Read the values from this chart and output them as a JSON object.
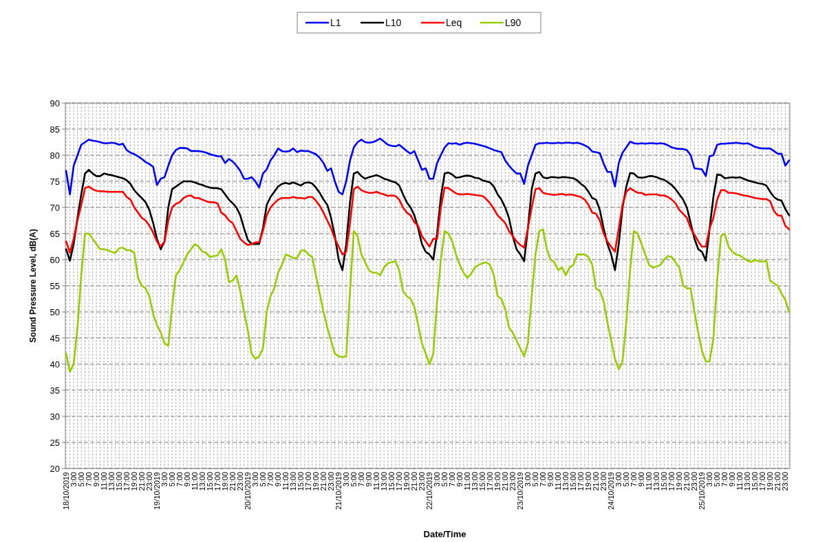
{
  "chart_data": {
    "type": "line",
    "xlabel": "Date/Time",
    "ylabel": "Sound Pressure Level, dB(A)",
    "categories": [
      "18/10/2019",
      null,
      "3:00",
      null,
      "5:00",
      null,
      "7:00",
      null,
      "9:00",
      null,
      "11:00",
      null,
      "13:00",
      null,
      "15:00",
      null,
      "17:00",
      null,
      "19:00",
      null,
      "21:00",
      null,
      "23:00",
      null,
      "19/10/2019",
      null,
      "3:00",
      null,
      "5:00",
      null,
      "7:00",
      null,
      "9:00",
      null,
      "11:00",
      null,
      "13:00",
      null,
      "15:00",
      null,
      "17:00",
      null,
      "19:00",
      null,
      "21:00",
      null,
      "23:00",
      null,
      "20/10/2019",
      null,
      "3:00",
      null,
      "5:00",
      null,
      "7:00",
      null,
      "9:00",
      null,
      "11:00",
      null,
      "13:00",
      null,
      "15:00",
      null,
      "17:00",
      null,
      "19:00",
      null,
      "21:00",
      null,
      "23:00",
      null,
      "21/10/2019",
      null,
      "3:00",
      null,
      "5:00",
      null,
      "7:00",
      null,
      "9:00",
      null,
      "11:00",
      null,
      "13:00",
      null,
      "15:00",
      null,
      "17:00",
      null,
      "19:00",
      null,
      "21:00",
      null,
      "23:00",
      null,
      "22/10/2019",
      null,
      "3:00",
      null,
      "5:00",
      null,
      "7:00",
      null,
      "9:00",
      null,
      "11:00",
      null,
      "13:00",
      null,
      "15:00",
      null,
      "17:00",
      null,
      "19:00",
      null,
      "21:00",
      null,
      "23:00",
      null,
      "23/10/2019",
      null,
      "3:00",
      null,
      "5:00",
      null,
      "7:00",
      null,
      "9:00",
      null,
      "11:00",
      null,
      "13:00",
      null,
      "15:00",
      null,
      "17:00",
      null,
      "19:00",
      null,
      "21:00",
      null,
      "23:00",
      null,
      "24/10/2019",
      null,
      "3:00",
      null,
      "5:00",
      null,
      "7:00",
      null,
      "9:00",
      null,
      "11:00",
      null,
      "13:00",
      null,
      "15:00",
      null,
      "17:00",
      null,
      "19:00",
      null,
      "21:00",
      null,
      "23:00",
      null,
      "25/10/2019",
      null,
      "3:00",
      null,
      "5:00",
      null,
      "7:00",
      null,
      "9:00",
      null,
      "11:00",
      null,
      "13:00",
      null,
      "15:00",
      null,
      "17:00",
      null,
      "19:00",
      null,
      "21:00",
      null,
      "23:00",
      null
    ],
    "series": [
      {
        "name": "L1",
        "color": "#0000ff",
        "values": [
          77,
          72.5,
          78,
          80,
          82,
          82.5,
          83,
          82.8,
          82.7,
          82.5,
          82.3,
          82.3,
          82.4,
          82.3,
          82,
          82.2,
          81,
          80.5,
          80.2,
          79.8,
          79.3,
          78.7,
          78.3,
          77.8,
          74.3,
          75.5,
          75.8,
          78,
          80,
          81,
          81.4,
          81.4,
          81.3,
          80.8,
          80.8,
          80.8,
          80.7,
          80.5,
          80.2,
          80,
          79.8,
          79.8,
          78.5,
          79.3,
          78.8,
          78,
          77,
          75.5,
          75.5,
          75.8,
          75,
          73.8,
          76.5,
          77.3,
          79,
          80,
          81.3,
          80.8,
          80.7,
          80.8,
          81.3,
          80.6,
          80.9,
          80.8,
          80.8,
          80.5,
          80.2,
          79.5,
          78.5,
          77,
          77.5,
          75,
          73,
          72.5,
          75,
          79,
          81.5,
          82.5,
          83,
          82.5,
          82.4,
          82.5,
          82.8,
          83.2,
          82.6,
          82,
          81.8,
          81.7,
          82,
          81.4,
          80.8,
          80.3,
          80.8,
          79,
          77.2,
          77.5,
          75.5,
          75.5,
          78.5,
          80,
          81.5,
          82.3,
          82.2,
          82.3,
          82,
          82.3,
          82.4,
          82.3,
          82.2,
          82,
          81.8,
          81.6,
          81.3,
          81,
          80.8,
          80.6,
          79,
          78,
          77.2,
          76.5,
          76.5,
          74.5,
          78,
          80,
          82,
          82.3,
          82.3,
          82.4,
          82.3,
          82.3,
          82.4,
          82.3,
          82.4,
          82.4,
          82.3,
          82.4,
          82.2,
          81.9,
          81.5,
          80.7,
          80.6,
          80.4,
          78.4,
          76.8,
          76.8,
          74,
          78.5,
          80.5,
          81.5,
          82.6,
          82.3,
          82.2,
          82.3,
          82.2,
          82.3,
          82.3,
          82.2,
          82.3,
          82.2,
          81.9,
          81.5,
          81.3,
          81.2,
          81.2,
          81,
          80,
          77.5,
          77.4,
          77.3,
          76,
          79.8,
          80,
          82,
          82.2,
          82.2,
          82.3,
          82.3,
          82.4,
          82.3,
          82.2,
          82.3,
          82,
          81.6,
          81.4,
          81.3,
          81.3,
          81.3,
          80.8,
          80.3,
          80.3,
          78,
          79
        ]
      },
      {
        "name": "L10",
        "color": "#000000",
        "values": [
          62,
          59.8,
          63,
          68,
          72.5,
          76.5,
          77.2,
          76.5,
          76,
          76,
          76.5,
          76.3,
          76.2,
          76,
          75.8,
          75.6,
          75.2,
          74.5,
          73.3,
          72.5,
          71.8,
          71,
          69.5,
          67,
          64,
          62,
          63.5,
          70,
          73.5,
          74,
          74.5,
          75,
          75,
          75,
          74.8,
          74.5,
          74.3,
          74,
          73.8,
          73.7,
          73.7,
          73.5,
          72.5,
          71.5,
          70.8,
          70,
          68.5,
          66,
          63.8,
          63,
          63,
          63,
          66,
          70.5,
          72,
          73,
          74,
          74.5,
          74.7,
          74.5,
          74.8,
          74.5,
          74.2,
          74.7,
          74.8,
          74.6,
          73.8,
          72.8,
          71.5,
          70.5,
          68,
          64.5,
          60,
          58,
          63,
          71,
          76.5,
          76.8,
          76,
          75.5,
          75.8,
          76,
          76.2,
          75.9,
          75.5,
          75.3,
          75,
          74.8,
          74.2,
          72.5,
          71,
          70,
          68.5,
          66,
          63,
          61.5,
          61,
          60,
          65,
          72,
          76.5,
          76.7,
          76.3,
          75.7,
          75.8,
          76,
          76.1,
          76,
          75.7,
          75.6,
          75.2,
          75,
          74.8,
          74,
          72.5,
          71.5,
          70,
          68,
          64.5,
          62,
          61,
          59.7,
          66,
          73.5,
          76.5,
          76.8,
          75.8,
          75.6,
          75.8,
          75.8,
          75.7,
          75.8,
          75.8,
          75.7,
          75.6,
          75.2,
          74.5,
          74,
          73,
          71.8,
          71.5,
          69.5,
          66,
          63,
          61,
          58,
          63,
          70,
          74,
          76.6,
          76.5,
          75.8,
          75.7,
          75.8,
          76,
          76,
          75.8,
          75.5,
          75.3,
          74.8,
          74.3,
          73.5,
          72.5,
          71.5,
          70,
          67,
          64,
          62,
          61.5,
          59.8,
          66,
          72,
          76.3,
          76.2,
          75.6,
          75.7,
          75.8,
          75.7,
          75.8,
          75.5,
          75.2,
          75,
          74.8,
          74.6,
          74.5,
          74.2,
          73,
          72,
          71.5,
          71.3,
          69.7,
          68.5
        ]
      },
      {
        "name": "Leq",
        "color": "#ff0000",
        "values": [
          63.5,
          61.3,
          64,
          67.5,
          70.5,
          73.7,
          74,
          73.5,
          73.2,
          73.1,
          73.1,
          73,
          73,
          73,
          73,
          73,
          72,
          71.5,
          70,
          69,
          68,
          67.5,
          66.5,
          65.2,
          63.5,
          62.5,
          63.5,
          67.5,
          70,
          70.7,
          71,
          71.8,
          72.2,
          72.3,
          71.8,
          71.8,
          71.5,
          71.2,
          71,
          71,
          70.8,
          69,
          68.5,
          67.5,
          67,
          65.5,
          64,
          63.3,
          62.8,
          63,
          63.3,
          63.3,
          65.5,
          68.5,
          70,
          70.8,
          71.5,
          71.8,
          71.8,
          71.8,
          72,
          71.8,
          71.8,
          71.7,
          72,
          72,
          71.3,
          70.3,
          69,
          67.5,
          66,
          64,
          62.5,
          61,
          61.5,
          67,
          73.5,
          74,
          73.3,
          73,
          72.8,
          72.8,
          73,
          72.7,
          72.5,
          72.2,
          72.3,
          72.2,
          71.5,
          70,
          69,
          68.5,
          67.2,
          66.5,
          64.5,
          63.5,
          62.5,
          64,
          64,
          70,
          73.8,
          73.7,
          73.2,
          72.7,
          72.5,
          72.5,
          72.6,
          72.5,
          72.4,
          72.3,
          72.2,
          71.6,
          70.8,
          69.7,
          68.5,
          67.8,
          67,
          65.5,
          64.5,
          63.5,
          62.8,
          62.3,
          66,
          70,
          73.5,
          73.7,
          72.8,
          72.6,
          72.5,
          72.4,
          72.5,
          72.6,
          72.4,
          72.5,
          72.4,
          72.2,
          72,
          71.5,
          70.5,
          69,
          68.8,
          67.5,
          65,
          63.5,
          62.5,
          61.5,
          66,
          70.5,
          73,
          73.7,
          73.2,
          72.8,
          72.8,
          72.4,
          72.5,
          72.5,
          72.5,
          72.3,
          72.3,
          72,
          71.5,
          70.8,
          69.5,
          68.8,
          68,
          66,
          64.8,
          63.5,
          62.5,
          62.5,
          66,
          68,
          71.5,
          73.3,
          73.3,
          72.8,
          72.8,
          72.7,
          72.5,
          72.3,
          72.2,
          72,
          71.8,
          71.7,
          71.6,
          71.6,
          71.2,
          69.3,
          68.5,
          68.4,
          66.5,
          65.8
        ]
      },
      {
        "name": "L90",
        "color": "#99cc00",
        "values": [
          42,
          38.5,
          40,
          47,
          57,
          65,
          65,
          64,
          63,
          62,
          62,
          61.8,
          61.5,
          61.3,
          62.2,
          62.3,
          61.8,
          61.8,
          61.3,
          56.5,
          55,
          54.5,
          53,
          49.5,
          47.5,
          46,
          44,
          43.5,
          51,
          57,
          58,
          59.5,
          61,
          62,
          63,
          62.5,
          61.5,
          61.3,
          60.5,
          60.7,
          60.8,
          62,
          60,
          55.7,
          56,
          57,
          54,
          50,
          46.5,
          42,
          41,
          41.5,
          43,
          50,
          53,
          54.5,
          57.5,
          59,
          61,
          60.7,
          60.3,
          60.3,
          61.7,
          61.8,
          61,
          60.5,
          57,
          53.5,
          50,
          47,
          44.5,
          42,
          41.5,
          41.3,
          41.5,
          54,
          65.5,
          64.5,
          61,
          59.5,
          58,
          57.5,
          57.5,
          57,
          58.5,
          59.3,
          59.5,
          59.7,
          58,
          54,
          53,
          52.5,
          51,
          47.5,
          44,
          42,
          40,
          42,
          52,
          60,
          65.5,
          65,
          63.5,
          61,
          59,
          57.5,
          56.5,
          57.3,
          58.5,
          59,
          59.3,
          59.5,
          59,
          57,
          53,
          52.5,
          50.5,
          47,
          46,
          44.5,
          43,
          41.5,
          44,
          53,
          61,
          65.5,
          65.8,
          62,
          60,
          59.5,
          58,
          58.5,
          57,
          58.5,
          59,
          61,
          61,
          61,
          60.5,
          59,
          54.5,
          54,
          52,
          48,
          44.5,
          41,
          39,
          40.5,
          48,
          58,
          65.5,
          65,
          63,
          61,
          59,
          58.5,
          58.7,
          59,
          60,
          60.7,
          60.5,
          59.5,
          58.5,
          55,
          54.5,
          54.5,
          50,
          46,
          42.5,
          40.5,
          40.5,
          45,
          56,
          64.5,
          65,
          62.5,
          61.5,
          61,
          60.8,
          60.3,
          59.8,
          59.6,
          60,
          59.7,
          59.6,
          59.8,
          56,
          55.5,
          55,
          53.5,
          52.3,
          50
        ]
      }
    ],
    "ylim": [
      20,
      90
    ],
    "yticks": [
      20,
      25,
      30,
      35,
      40,
      45,
      50,
      55,
      60,
      65,
      70,
      75,
      80,
      85,
      90
    ],
    "grid": true,
    "legend": "top",
    "line_style": "solid"
  }
}
